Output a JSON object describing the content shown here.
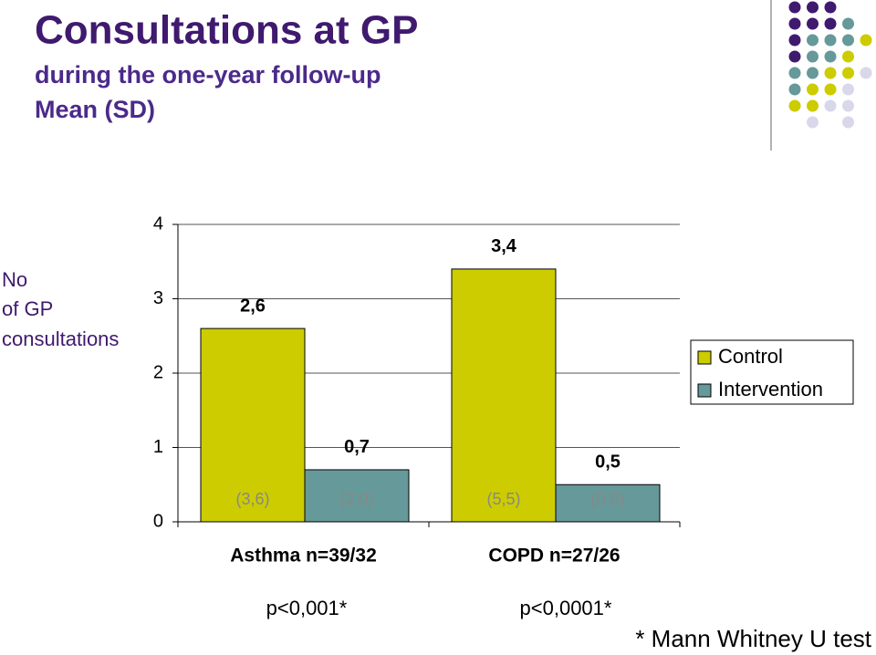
{
  "chart_data": {
    "type": "bar",
    "title": "Consultations at GP",
    "subtitle": [
      "during the one-year follow-up",
      "Mean (SD)"
    ],
    "ylabel": [
      "No",
      "of GP",
      "consultations"
    ],
    "categories": [
      "Asthma n=39/32",
      "COPD n=27/26"
    ],
    "series": [
      {
        "name": "Control",
        "color": "#cccc00",
        "values": [
          2.6,
          3.4
        ],
        "value_labels": [
          "2,6",
          "3,4"
        ],
        "sd_labels": [
          "(3,6)",
          "(5,5)"
        ]
      },
      {
        "name": "Intervention",
        "color": "#669999",
        "values": [
          0.7,
          0.5
        ],
        "value_labels": [
          "0,7",
          "0,5"
        ],
        "sd_labels": [
          "(2,0)",
          "(0,9)"
        ]
      }
    ],
    "annotations": [
      "p<0,001*",
      "p<0,0001*"
    ],
    "footnote": "* Mann Whitney U test",
    "ylim": [
      0,
      4
    ],
    "yticks": [
      0,
      1,
      2,
      3,
      4
    ],
    "grid": true,
    "legend": "right"
  }
}
